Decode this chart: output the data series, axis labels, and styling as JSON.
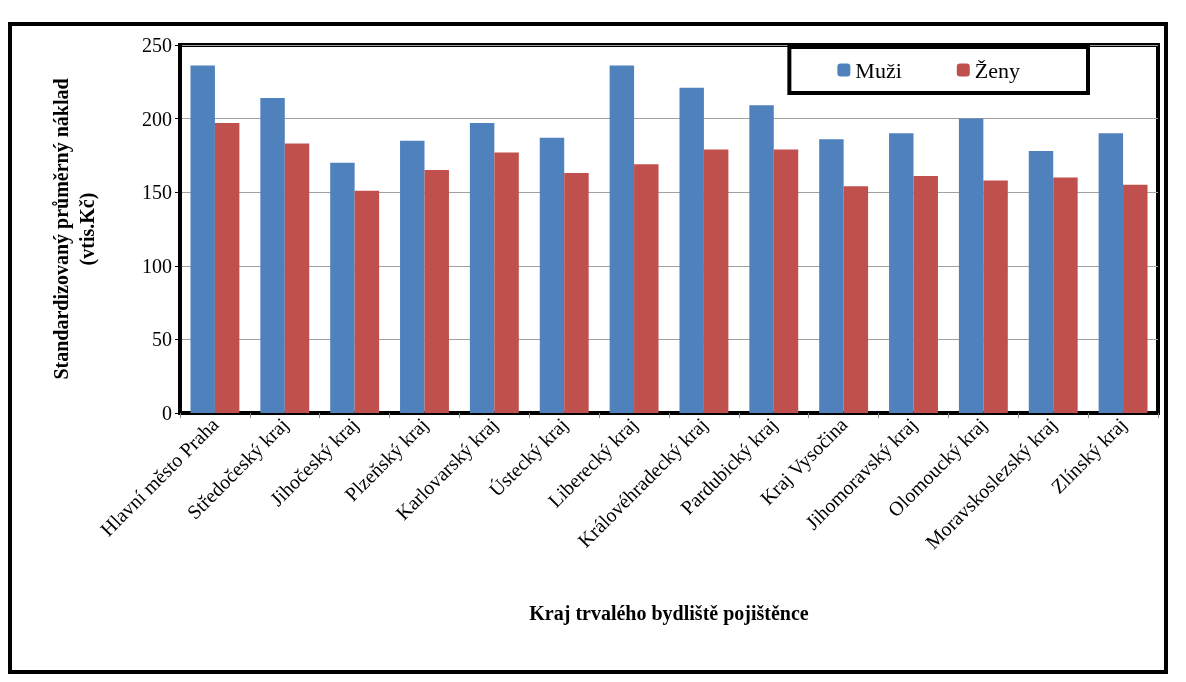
{
  "chart_data": {
    "type": "bar",
    "xlabel": "Kraj trvalého bydliště pojištěnce",
    "ylabel": "Standardizovaný průměrný náklad\n(vtis.Kč)",
    "categories": [
      "Hlavní město Praha",
      "Středočeský kraj",
      "Jihočeský kraj",
      "Plzeňský kraj",
      "Karlovarský kraj",
      "Ústecký kraj",
      "Liberecký kraj",
      "Královéhradecký kraj",
      "Pardubický kraj",
      "Kraj Vysočina",
      "Jihomoravský kraj",
      "Olomoucký kraj",
      "Moravskoslezský kraj",
      "Zlínský kraj"
    ],
    "series": [
      {
        "name": "Muži",
        "color": "#4f81bd",
        "values": [
          236,
          214,
          170,
          185,
          197,
          187,
          236,
          221,
          209,
          186,
          190,
          200,
          178,
          190
        ]
      },
      {
        "name": "Ženy",
        "color": "#c0504d",
        "values": [
          197,
          183,
          151,
          165,
          177,
          163,
          169,
          179,
          179,
          154,
          161,
          158,
          160,
          155
        ]
      }
    ],
    "ylim": [
      0,
      250
    ],
    "yticks": [
      0,
      50,
      100,
      150,
      200,
      250
    ],
    "grid": "y",
    "legend": "top right"
  }
}
